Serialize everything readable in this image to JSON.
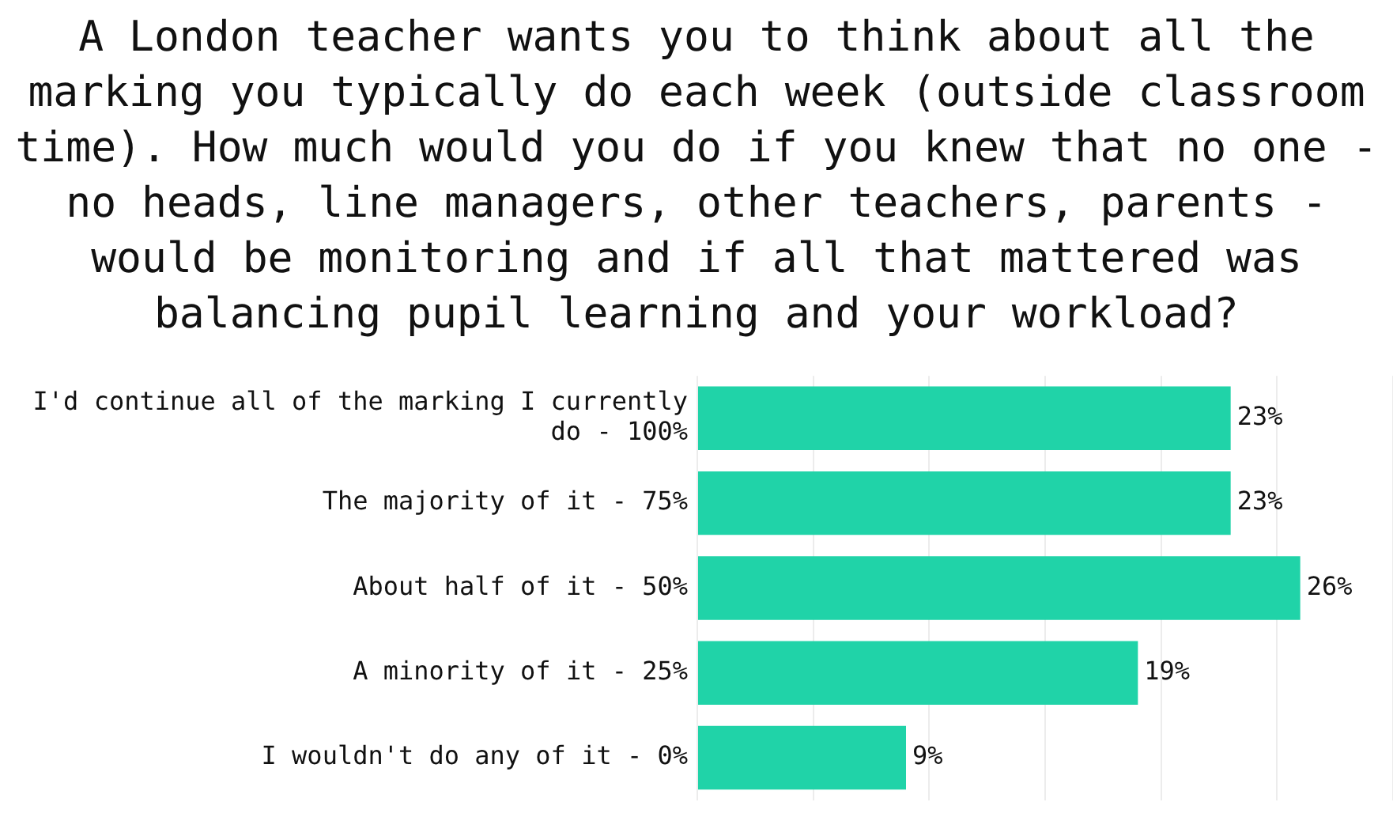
{
  "chart_data": {
    "type": "bar",
    "orientation": "horizontal",
    "title": "A London teacher wants you to think about all the marking you typically do each week (outside classroom time). How much would you do if you knew that no one - no heads, line managers, other teachers, parents - would be monitoring and if all that mattered was balancing pupil learning and your workload?",
    "categories": [
      "I'd continue all of the marking I currently do - 100%",
      "The majority of it - 75%",
      "About half of it - 50%",
      "A minority of it - 25%",
      "I wouldn't do any of it - 0%"
    ],
    "values": [
      23,
      23,
      26,
      19,
      9
    ],
    "value_labels": [
      "23%",
      "23%",
      "26%",
      "19%",
      "9%"
    ],
    "color": "#20d3a8",
    "tick_labels": "y",
    "grid": "x"
  }
}
